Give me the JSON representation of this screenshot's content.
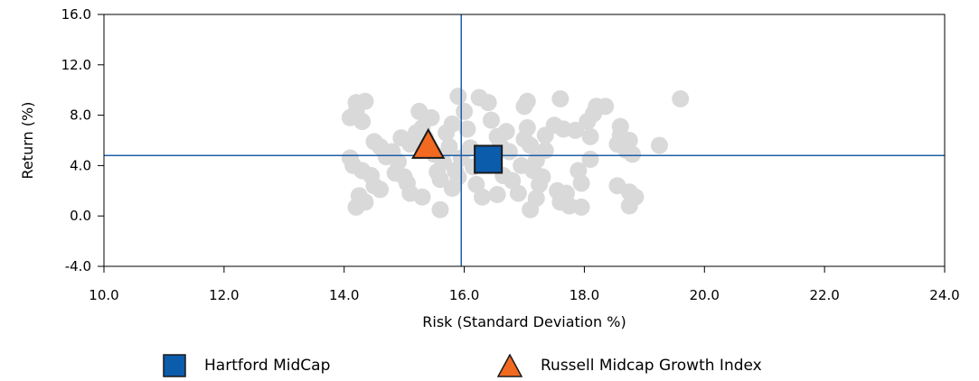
{
  "chart_data": {
    "type": "scatter",
    "xlabel": "Risk (Standard Deviation %)",
    "ylabel": "Return (%)",
    "xlim": [
      10.0,
      24.0
    ],
    "ylim": [
      -4.0,
      16.0
    ],
    "xticks": [
      "10.0",
      "12.0",
      "14.0",
      "16.0",
      "18.0",
      "20.0",
      "22.0",
      "24.0"
    ],
    "yticks": [
      "-4.0",
      "0.0",
      "4.0",
      "8.0",
      "12.0",
      "16.0"
    ],
    "reference_lines": {
      "x": 15.95,
      "y": 4.8,
      "color": "#1f5fa6"
    },
    "grid": false,
    "legend_position": "bottom",
    "series": [
      {
        "name": "Hartford MidCap",
        "marker": "square",
        "color": "#0b5cab",
        "points": [
          [
            16.4,
            4.5
          ]
        ]
      },
      {
        "name": "Russell Midcap Growth Index",
        "marker": "triangle",
        "color": "#f26a21",
        "points": [
          [
            15.4,
            5.4
          ]
        ]
      },
      {
        "marker": "circle",
        "color": "#d9d9d9",
        "points": [
          [
            14.2,
            9.0
          ],
          [
            14.35,
            9.1
          ],
          [
            14.2,
            8.3
          ],
          [
            14.1,
            7.8
          ],
          [
            14.3,
            7.5
          ],
          [
            14.1,
            4.6
          ],
          [
            14.15,
            4.0
          ],
          [
            14.3,
            3.6
          ],
          [
            14.45,
            3.2
          ],
          [
            14.25,
            1.6
          ],
          [
            14.2,
            0.7
          ],
          [
            14.35,
            1.1
          ],
          [
            14.5,
            2.4
          ],
          [
            14.5,
            5.9
          ],
          [
            14.6,
            5.5
          ],
          [
            14.7,
            4.7
          ],
          [
            14.8,
            5.1
          ],
          [
            14.9,
            4.3
          ],
          [
            14.85,
            3.4
          ],
          [
            14.6,
            2.1
          ],
          [
            14.95,
            6.2
          ],
          [
            15.0,
            3.1
          ],
          [
            15.05,
            2.6
          ],
          [
            15.1,
            5.7
          ],
          [
            15.2,
            6.6
          ],
          [
            15.3,
            7.0
          ],
          [
            15.25,
            8.3
          ],
          [
            15.35,
            6.2
          ],
          [
            15.45,
            7.8
          ],
          [
            15.5,
            4.9
          ],
          [
            15.55,
            3.5
          ],
          [
            15.6,
            2.9
          ],
          [
            15.7,
            6.6
          ],
          [
            15.65,
            4.3
          ],
          [
            15.1,
            1.8
          ],
          [
            15.3,
            1.5
          ],
          [
            15.75,
            5.5
          ],
          [
            15.8,
            7.3
          ],
          [
            15.85,
            3.6
          ],
          [
            15.9,
            3.1
          ],
          [
            15.95,
            4.6
          ],
          [
            15.6,
            0.5
          ],
          [
            15.8,
            2.2
          ],
          [
            16.0,
            8.3
          ],
          [
            16.05,
            6.9
          ],
          [
            16.1,
            5.4
          ],
          [
            16.15,
            3.9
          ],
          [
            16.2,
            2.5
          ],
          [
            16.3,
            1.5
          ],
          [
            16.25,
            9.4
          ],
          [
            15.9,
            9.5
          ],
          [
            16.4,
            9.0
          ],
          [
            16.45,
            7.6
          ],
          [
            16.55,
            6.3
          ],
          [
            16.6,
            5.6
          ],
          [
            16.65,
            3.2
          ],
          [
            16.55,
            1.7
          ],
          [
            16.7,
            6.7
          ],
          [
            16.75,
            5.1
          ],
          [
            16.8,
            2.8
          ],
          [
            16.9,
            1.8
          ],
          [
            16.95,
            4.0
          ],
          [
            17.0,
            6.1
          ],
          [
            17.05,
            7.0
          ],
          [
            17.1,
            5.6
          ],
          [
            17.15,
            3.6
          ],
          [
            17.2,
            1.4
          ],
          [
            17.1,
            0.5
          ],
          [
            17.25,
            2.5
          ],
          [
            17.2,
            4.4
          ],
          [
            17.35,
            5.2
          ],
          [
            17.3,
            3.1
          ],
          [
            17.05,
            9.1
          ],
          [
            17.0,
            8.7
          ],
          [
            17.35,
            6.4
          ],
          [
            17.6,
            9.3
          ],
          [
            17.65,
            6.9
          ],
          [
            17.5,
            7.2
          ],
          [
            17.55,
            2.0
          ],
          [
            17.6,
            1.1
          ],
          [
            17.7,
            1.8
          ],
          [
            17.75,
            0.8
          ],
          [
            17.85,
            6.8
          ],
          [
            17.9,
            3.6
          ],
          [
            17.95,
            2.6
          ],
          [
            18.05,
            7.5
          ],
          [
            18.1,
            6.3
          ],
          [
            18.1,
            4.5
          ],
          [
            17.95,
            0.7
          ],
          [
            18.15,
            8.1
          ],
          [
            18.2,
            8.7
          ],
          [
            18.35,
            8.7
          ],
          [
            18.55,
            5.7
          ],
          [
            18.6,
            7.1
          ],
          [
            18.6,
            6.4
          ],
          [
            18.55,
            2.4
          ],
          [
            18.7,
            5.2
          ],
          [
            18.75,
            6.0
          ],
          [
            18.8,
            4.9
          ],
          [
            18.75,
            1.9
          ],
          [
            18.85,
            1.5
          ],
          [
            18.75,
            0.8
          ],
          [
            19.25,
            5.6
          ],
          [
            19.6,
            9.3
          ]
        ]
      }
    ]
  }
}
